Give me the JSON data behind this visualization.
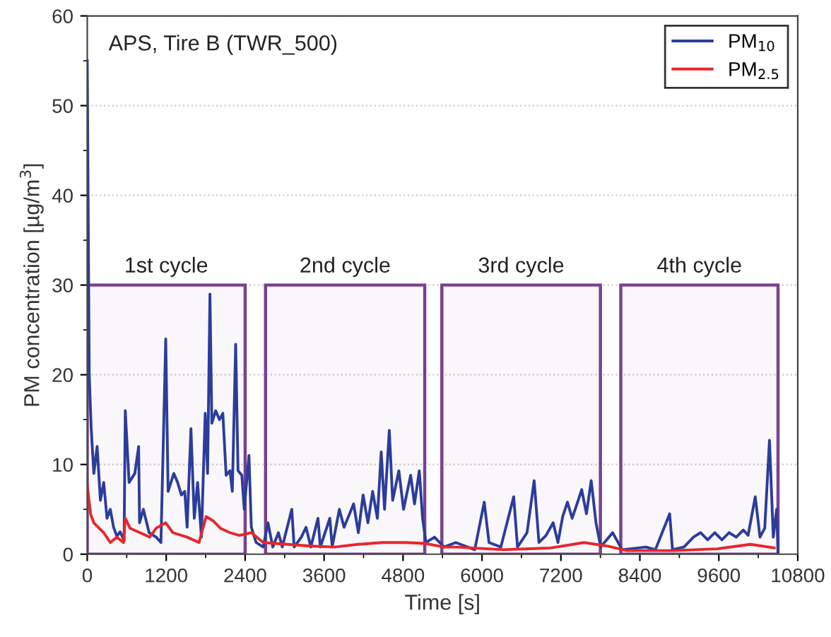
{
  "chart_data": {
    "type": "line",
    "title": "APS, Tire B (TWR_500)",
    "xlabel": "Time [s]",
    "ylabel": "PM concentration [µg/m$^{3}$]",
    "xlim": [
      0,
      10800
    ],
    "xticks": [
      0,
      1200,
      2400,
      3600,
      4800,
      6000,
      7200,
      8400,
      9600,
      10800
    ],
    "ylim": [
      0,
      60
    ],
    "yticks": [
      0,
      10,
      20,
      30,
      40,
      50,
      60
    ],
    "grid": "y",
    "legend": "top right",
    "marker": "none",
    "line_style": "solid",
    "bands": [
      {
        "axis": "x",
        "from": 0,
        "to": 2400,
        "label": "1st cycle",
        "color": "#7b3f8f"
      },
      {
        "axis": "x",
        "from": 2710,
        "to": 5130,
        "label": "2nd cycle",
        "color": "#7b3f8f"
      },
      {
        "axis": "x",
        "from": 5390,
        "to": 7800,
        "label": "3rd cycle",
        "color": "#7b3f8f"
      },
      {
        "axis": "x",
        "from": 8110,
        "to": 10500,
        "label": "4th cycle",
        "color": "#7b3f8f"
      }
    ],
    "series": [
      {
        "name": "PM$_{10}$",
        "color": "#2b3d9a",
        "x": [
          0,
          30,
          60,
          100,
          150,
          200,
          250,
          300,
          350,
          400,
          450,
          500,
          560,
          578,
          636,
          723,
          781,
          795,
          853,
          940,
          1048,
          1120,
          1193,
          1229,
          1316,
          1374,
          1431,
          1482,
          1518,
          1576,
          1627,
          1677,
          1735,
          1793,
          1829,
          1865,
          1894,
          1952,
          2010,
          2061,
          2111,
          2169,
          2205,
          2256,
          2292,
          2350,
          2386,
          2458,
          2494,
          2567,
          2675,
          2747,
          2820,
          2906,
          2964,
          3109,
          3145,
          3254,
          3326,
          3398,
          3507,
          3543,
          3687,
          3723,
          3832,
          3904,
          4049,
          4121,
          4193,
          4266,
          4338,
          4410,
          4468,
          4519,
          4591,
          4642,
          4736,
          4808,
          4916,
          4974,
          5047,
          5097,
          5148,
          5278,
          5423,
          5601,
          5890,
          6034,
          6107,
          6287,
          6482,
          6540,
          6685,
          6793,
          6866,
          6974,
          7082,
          7155,
          7227,
          7299,
          7371,
          7444,
          7516,
          7588,
          7660,
          7733,
          7805,
          7986,
          8130,
          8492,
          8636,
          8853,
          8896,
          9070,
          9214,
          9323,
          9431,
          9539,
          9648,
          9756,
          9865,
          9973,
          10045,
          10154,
          10226,
          10298,
          10370,
          10428,
          10479,
          10500
        ],
        "values": [
          55,
          20,
          14,
          9,
          12,
          6,
          8,
          4,
          5,
          3,
          2,
          2.5,
          1.5,
          16,
          8,
          9,
          12,
          3.5,
          5,
          2.4,
          1.9,
          1.3,
          24,
          7,
          9,
          8,
          6.6,
          7,
          3,
          14,
          4,
          8,
          1.9,
          15.7,
          9,
          29,
          14.6,
          16,
          15,
          15.7,
          8.8,
          9.3,
          7,
          23.4,
          9.3,
          8.8,
          5,
          11,
          3,
          1.3,
          0.8,
          3.5,
          0.8,
          2.4,
          0.8,
          5,
          0.8,
          1.9,
          3,
          0.8,
          4,
          0.8,
          4,
          0.8,
          5,
          3,
          5.6,
          2.4,
          6.6,
          3.5,
          7,
          4,
          11.4,
          5,
          13.8,
          6,
          9.3,
          5,
          8.8,
          5.6,
          9.3,
          4,
          1.3,
          1.9,
          0.8,
          1.3,
          0.5,
          5.8,
          1.3,
          0.8,
          6.4,
          0.8,
          2.4,
          8.2,
          1.3,
          2.1,
          3.5,
          1.3,
          4.2,
          5.8,
          4,
          5.6,
          7.2,
          4.5,
          8.2,
          3.5,
          0.8,
          2.4,
          0.5,
          0.8,
          0.5,
          4.5,
          0.5,
          0.8,
          1.9,
          2.4,
          1.6,
          2.4,
          1.6,
          2.4,
          1.9,
          2.7,
          2.1,
          6.4,
          1.9,
          2.9,
          12.7,
          1.9,
          5,
          0.3
        ]
      },
      {
        "name": "PM$_{2.5}$",
        "color": "#e8262a",
        "x": [
          0,
          50,
          100,
          250,
          350,
          450,
          550,
          578,
          650,
          800,
          950,
          1048,
          1193,
          1301,
          1518,
          1699,
          1807,
          1916,
          2024,
          2169,
          2314,
          2494,
          2675,
          3037,
          3398,
          3760,
          4121,
          4483,
          4844,
          5133,
          5423,
          5601,
          6324,
          7046,
          7552,
          7913,
          8203,
          8925,
          9575,
          10081,
          10443
        ],
        "values": [
          7.7,
          4.5,
          3.5,
          2.4,
          1.3,
          1.9,
          1.3,
          4,
          2.9,
          2.4,
          1.9,
          2.9,
          3.5,
          2.4,
          1.9,
          1.3,
          4.2,
          3.7,
          2.9,
          2.4,
          2.1,
          2.4,
          1.3,
          1.1,
          0.9,
          0.8,
          1.1,
          1.3,
          1.3,
          1.2,
          0.8,
          0.8,
          0.5,
          0.7,
          1.3,
          0.9,
          0.4,
          0.4,
          0.6,
          1.1,
          0.7
        ]
      }
    ]
  }
}
